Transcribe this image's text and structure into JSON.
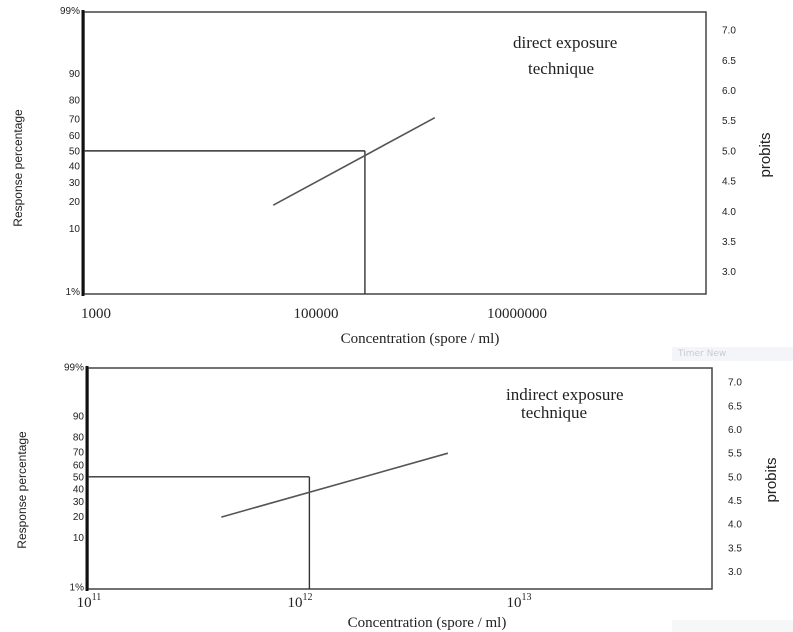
{
  "watermark": "Timer New",
  "chart_data": [
    {
      "type": "line",
      "annotation": [
        "direct exposure",
        "technique"
      ],
      "xlabel": "Concentration (spore / ml)",
      "ylabel_left": "Response percentage",
      "ylabel_right": "probits",
      "x_scale": "log",
      "x_ticks": [
        {
          "value": 1000,
          "label": "1000"
        },
        {
          "value": 100000,
          "label": "100000"
        },
        {
          "value": 10000000,
          "label": "10000000"
        }
      ],
      "xlim": [
        1000,
        50000000000
      ],
      "y_left_ticks": [
        "99%",
        "90",
        "80",
        "70",
        "60",
        "50",
        "40",
        "30",
        "20",
        "10",
        "1%"
      ],
      "y_right_ticks": [
        "7.0",
        "6.5",
        "6.0",
        "5.5",
        "5.0",
        "4.5",
        "4.0",
        "3.5",
        "3.0"
      ],
      "ylim_probit": [
        2.63,
        7.3
      ],
      "series": [
        {
          "x": [
            220000,
            22000000
          ],
          "y": [
            4.1,
            5.55
          ]
        }
      ],
      "reference": {
        "response_percent": 50,
        "probit": 5.0,
        "x": 3000000
      }
    },
    {
      "type": "line",
      "annotation": [
        "indirect exposure",
        "technique"
      ],
      "xlabel": "Concentration (spore / ml)",
      "ylabel_left": "Response percentage",
      "ylabel_right": "probits",
      "x_scale": "log",
      "x_ticks": [
        {
          "value": 100000000000.0,
          "base": "10",
          "exp": "11"
        },
        {
          "value": 1000000000000.0,
          "base": "10",
          "exp": "12"
        },
        {
          "value": 10000000000000.0,
          "base": "10",
          "exp": "13"
        }
      ],
      "xlim": [
        100000000000.0,
        170000000000000.0
      ],
      "y_left_ticks": [
        "99%",
        "90",
        "80",
        "70",
        "60",
        "50",
        "40",
        "30",
        "20",
        "10",
        "1%"
      ],
      "y_right_ticks": [
        "7.0",
        "6.5",
        "6.0",
        "5.5",
        "5.0",
        "4.5",
        "4.0",
        "3.5",
        "3.0"
      ],
      "ylim_probit": [
        2.63,
        7.3
      ],
      "series": [
        {
          "x": [
            490000000000.0,
            7300000000000.0
          ],
          "y": [
            4.15,
            5.5
          ]
        }
      ],
      "reference": {
        "response_percent": 50,
        "probit": 5.0,
        "x": 1400000000000.0
      }
    }
  ]
}
